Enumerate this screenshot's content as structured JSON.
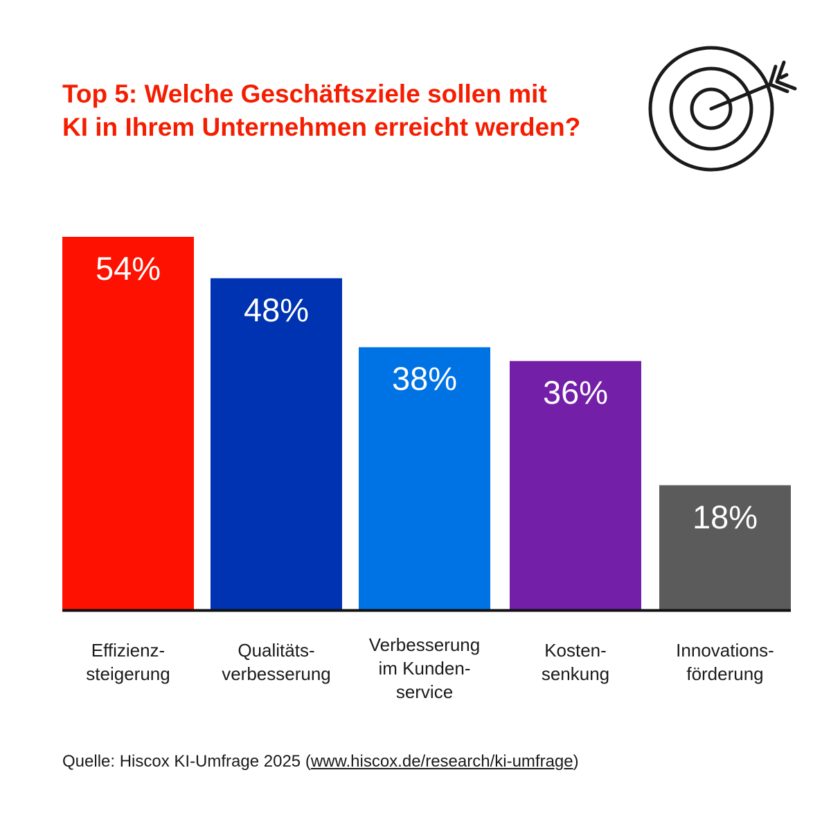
{
  "title_lines": [
    "Top 5: Welche Geschäftsziele sollen mit",
    "KI in Ihrem Unternehmen erreicht werden?"
  ],
  "icon": "target-with-arrow-icon",
  "chart_data": {
    "type": "bar",
    "categories": [
      [
        "Effizienz-",
        "steigerung"
      ],
      [
        "Qualitäts-",
        "verbesserung"
      ],
      [
        "Verbesserung",
        "im Kunden-",
        "service"
      ],
      [
        "Kosten-",
        "senkung"
      ],
      [
        "Innovations-",
        "förderung"
      ]
    ],
    "values": [
      54,
      48,
      38,
      36,
      18
    ],
    "value_labels": [
      "54%",
      "48%",
      "38%",
      "36%",
      "18%"
    ],
    "colors": [
      "#fe1100",
      "#0033b1",
      "#0073e4",
      "#731fa8",
      "#5b5b5b"
    ],
    "unit": "%",
    "ylim": [
      0,
      54
    ],
    "grid": false,
    "axis_color": "#111111"
  },
  "source": {
    "prefix": "Quelle: Hiscox KI-Umfrage 2025 (",
    "link": "www.hiscox.de/research/ki-umfrage",
    "suffix": ")"
  }
}
